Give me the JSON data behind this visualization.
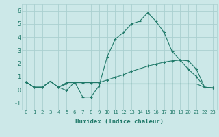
{
  "x": [
    0,
    1,
    2,
    3,
    4,
    5,
    6,
    7,
    8,
    9,
    10,
    11,
    12,
    13,
    14,
    15,
    16,
    17,
    18,
    19,
    20,
    21,
    22,
    23
  ],
  "line1": [
    0.6,
    0.2,
    0.2,
    0.65,
    0.2,
    -0.05,
    0.6,
    -0.55,
    -0.55,
    0.3,
    2.5,
    3.85,
    4.35,
    5.0,
    5.2,
    5.85,
    5.2,
    4.35,
    2.9,
    2.25,
    1.55,
    1.0,
    0.2,
    0.15
  ],
  "line2": [
    0.6,
    0.2,
    0.2,
    0.65,
    0.2,
    0.55,
    0.55,
    0.55,
    0.55,
    0.55,
    0.75,
    0.95,
    1.15,
    1.4,
    1.6,
    1.8,
    1.95,
    2.1,
    2.2,
    2.25,
    2.2,
    1.55,
    0.2,
    0.15
  ],
  "line3": [
    0.6,
    0.2,
    0.2,
    0.65,
    0.2,
    0.45,
    0.45,
    0.45,
    0.45,
    0.45,
    0.45,
    0.45,
    0.45,
    0.45,
    0.45,
    0.45,
    0.45,
    0.45,
    0.45,
    0.45,
    0.45,
    0.45,
    0.2,
    0.15
  ],
  "color": "#217a6a",
  "bg_color": "#cce8e8",
  "grid_color": "#aad0d0",
  "xlabel": "Humidex (Indice chaleur)",
  "xlim": [
    -0.5,
    23.5
  ],
  "ylim": [
    -1.5,
    6.5
  ],
  "yticks": [
    -1,
    0,
    1,
    2,
    3,
    4,
    5,
    6
  ],
  "xticks": [
    0,
    1,
    2,
    3,
    4,
    5,
    6,
    7,
    8,
    9,
    10,
    11,
    12,
    13,
    14,
    15,
    16,
    17,
    18,
    19,
    20,
    21,
    22,
    23
  ],
  "title_fontsize": 6,
  "xlabel_fontsize": 6.5,
  "tick_fontsize": 5.2,
  "ytick_fontsize": 6.0,
  "line_width": 0.8,
  "marker_size": 3.0
}
